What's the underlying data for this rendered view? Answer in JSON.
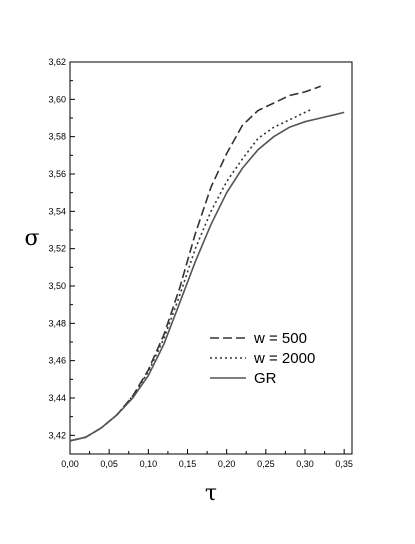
{
  "chart_data": {
    "type": "line",
    "xlabel": "τ",
    "ylabel": "σ",
    "xlim": [
      0.0,
      0.36
    ],
    "ylim": [
      3.41,
      3.62
    ],
    "x_ticks": [
      "0,00",
      "0,05",
      "0,10",
      "0,15",
      "0,20",
      "0,25",
      "0,30",
      "0,35"
    ],
    "y_ticks": [
      "3,42",
      "3,44",
      "3,46",
      "3,48",
      "3,50",
      "3,52",
      "3,54",
      "3,56",
      "3,58",
      "3,60",
      "3,62"
    ],
    "grid": false,
    "legend_position": "bottom-right",
    "series": [
      {
        "name": "w = 500",
        "style": "dashed",
        "color": "#333333",
        "points": [
          [
            0.0,
            3.417
          ],
          [
            0.02,
            3.419
          ],
          [
            0.04,
            3.424
          ],
          [
            0.06,
            3.431
          ],
          [
            0.08,
            3.441
          ],
          [
            0.1,
            3.455
          ],
          [
            0.12,
            3.474
          ],
          [
            0.14,
            3.499
          ],
          [
            0.16,
            3.528
          ],
          [
            0.18,
            3.553
          ],
          [
            0.2,
            3.571
          ],
          [
            0.22,
            3.586
          ],
          [
            0.24,
            3.594
          ],
          [
            0.26,
            3.598
          ],
          [
            0.28,
            3.602
          ],
          [
            0.3,
            3.604
          ],
          [
            0.32,
            3.607
          ]
        ]
      },
      {
        "name": "w = 2000",
        "style": "dotted",
        "color": "#333333",
        "points": [
          [
            0.0,
            3.417
          ],
          [
            0.02,
            3.419
          ],
          [
            0.04,
            3.424
          ],
          [
            0.06,
            3.431
          ],
          [
            0.08,
            3.441
          ],
          [
            0.1,
            3.454
          ],
          [
            0.12,
            3.472
          ],
          [
            0.14,
            3.495
          ],
          [
            0.16,
            3.52
          ],
          [
            0.18,
            3.54
          ],
          [
            0.2,
            3.556
          ],
          [
            0.22,
            3.568
          ],
          [
            0.24,
            3.579
          ],
          [
            0.26,
            3.585
          ],
          [
            0.28,
            3.589
          ],
          [
            0.3,
            3.593
          ],
          [
            0.31,
            3.595
          ]
        ]
      },
      {
        "name": "GR",
        "style": "solid",
        "color": "#555555",
        "points": [
          [
            0.0,
            3.417
          ],
          [
            0.02,
            3.419
          ],
          [
            0.04,
            3.424
          ],
          [
            0.06,
            3.431
          ],
          [
            0.08,
            3.44
          ],
          [
            0.1,
            3.452
          ],
          [
            0.12,
            3.469
          ],
          [
            0.14,
            3.491
          ],
          [
            0.16,
            3.513
          ],
          [
            0.18,
            3.533
          ],
          [
            0.2,
            3.55
          ],
          [
            0.22,
            3.563
          ],
          [
            0.24,
            3.573
          ],
          [
            0.26,
            3.58
          ],
          [
            0.28,
            3.585
          ],
          [
            0.3,
            3.588
          ],
          [
            0.32,
            3.59
          ],
          [
            0.34,
            3.592
          ],
          [
            0.35,
            3.593
          ]
        ]
      }
    ]
  }
}
